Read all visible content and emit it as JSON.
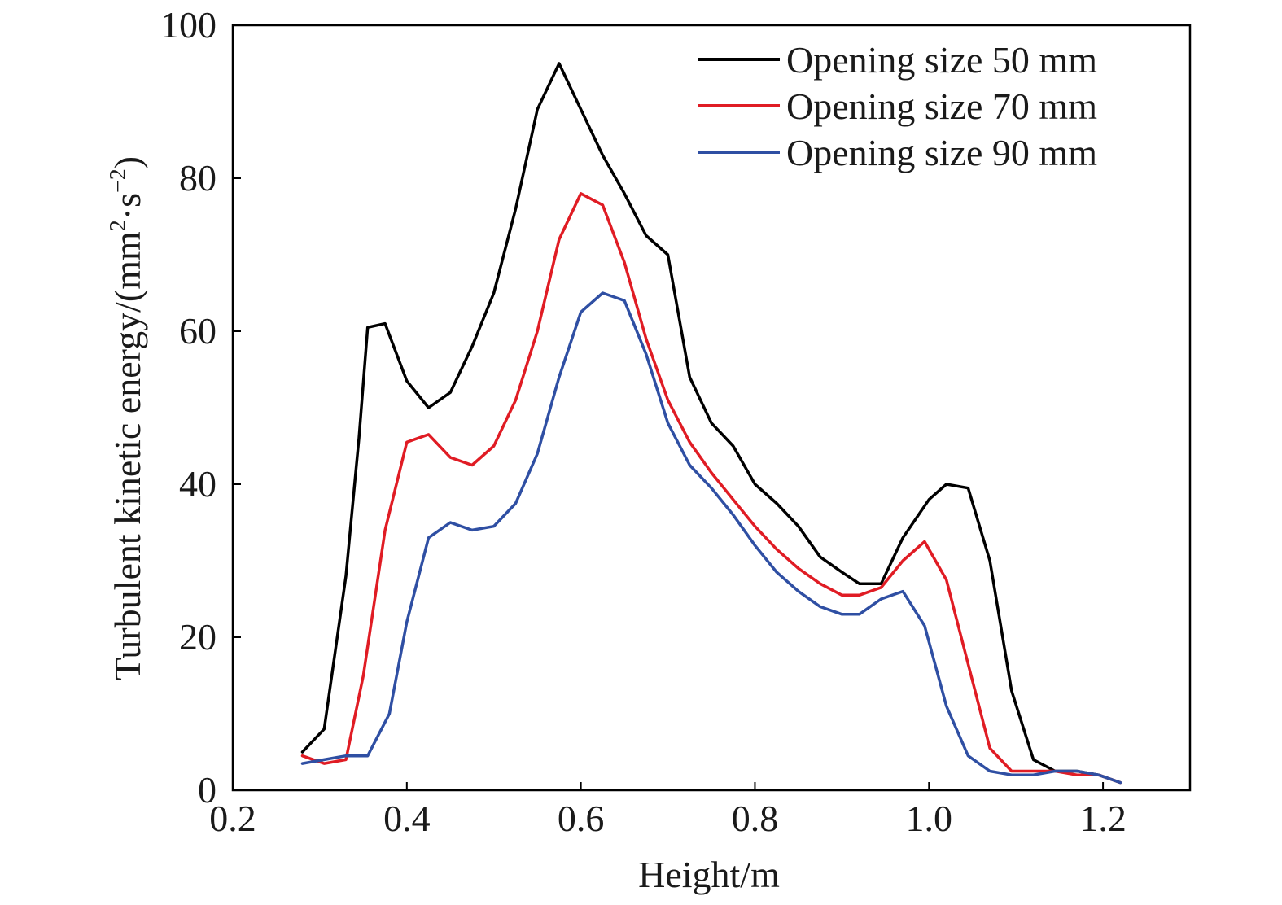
{
  "chart_data": {
    "type": "line",
    "xlabel": "Height/m",
    "ylabel": {
      "prefix": "Turbulent kinetic energy/(mm",
      "sup1": "2",
      "mid": "·s",
      "sup2": "−2",
      "suffix": ")"
    },
    "xlim": [
      0.2,
      1.3
    ],
    "ylim": [
      0,
      100
    ],
    "xticks": [
      "0.2",
      "0.4",
      "0.6",
      "0.8",
      "1.0",
      "1.2"
    ],
    "yticks": [
      "0",
      "20",
      "40",
      "60",
      "80",
      "100"
    ],
    "grid": false,
    "legend_position": "top-right",
    "series": [
      {
        "name": "Opening size 50 mm",
        "color": "#000000",
        "x": [
          0.28,
          0.305,
          0.33,
          0.345,
          0.355,
          0.375,
          0.4,
          0.425,
          0.45,
          0.475,
          0.5,
          0.525,
          0.55,
          0.575,
          0.6,
          0.625,
          0.65,
          0.675,
          0.7,
          0.725,
          0.75,
          0.775,
          0.8,
          0.825,
          0.85,
          0.875,
          0.9,
          0.92,
          0.945,
          0.97,
          1.0,
          1.02,
          1.045,
          1.07,
          1.095,
          1.12,
          1.145,
          1.17,
          1.195,
          1.22
        ],
        "y": [
          5,
          8,
          28,
          46,
          60.5,
          61,
          53.5,
          50,
          52,
          58,
          65,
          76,
          89,
          95,
          89,
          83,
          78,
          72.5,
          70,
          54,
          48,
          45,
          40,
          37.5,
          34.5,
          30.5,
          28.5,
          27,
          27,
          33,
          38,
          40,
          39.5,
          30,
          13,
          4,
          2.5,
          2.5,
          2,
          1
        ]
      },
      {
        "name": "Opening size 70 mm",
        "color": "#e01c24",
        "x": [
          0.28,
          0.305,
          0.33,
          0.35,
          0.375,
          0.4,
          0.425,
          0.45,
          0.475,
          0.5,
          0.525,
          0.55,
          0.575,
          0.6,
          0.625,
          0.65,
          0.675,
          0.7,
          0.725,
          0.75,
          0.775,
          0.8,
          0.825,
          0.85,
          0.875,
          0.9,
          0.92,
          0.945,
          0.97,
          0.995,
          1.02,
          1.045,
          1.07,
          1.095,
          1.12,
          1.145,
          1.17,
          1.195,
          1.22
        ],
        "y": [
          4.5,
          3.5,
          4,
          15,
          34,
          45.5,
          46.5,
          43.5,
          42.5,
          45,
          51,
          60,
          72,
          78,
          76.5,
          69,
          59,
          51,
          45.5,
          41.5,
          38,
          34.5,
          31.5,
          29,
          27,
          25.5,
          25.5,
          26.5,
          30,
          32.5,
          27.5,
          16.5,
          5.5,
          2.5,
          2.5,
          2.5,
          2,
          2,
          1
        ]
      },
      {
        "name": "Opening size 90 mm",
        "color": "#2f4fa3",
        "x": [
          0.28,
          0.305,
          0.33,
          0.355,
          0.38,
          0.4,
          0.425,
          0.45,
          0.475,
          0.5,
          0.525,
          0.55,
          0.575,
          0.6,
          0.625,
          0.65,
          0.675,
          0.7,
          0.725,
          0.75,
          0.775,
          0.8,
          0.825,
          0.85,
          0.875,
          0.9,
          0.92,
          0.945,
          0.97,
          0.995,
          1.02,
          1.045,
          1.07,
          1.095,
          1.12,
          1.145,
          1.17,
          1.195,
          1.22
        ],
        "y": [
          3.5,
          4,
          4.5,
          4.5,
          10,
          22,
          33,
          35,
          34,
          34.5,
          37.5,
          44,
          54,
          62.5,
          65,
          64,
          57,
          48,
          42.5,
          39.5,
          36,
          32,
          28.5,
          26,
          24,
          23,
          23,
          25,
          26,
          21.5,
          11,
          4.5,
          2.5,
          2,
          2,
          2.5,
          2.5,
          2,
          1
        ]
      }
    ]
  }
}
